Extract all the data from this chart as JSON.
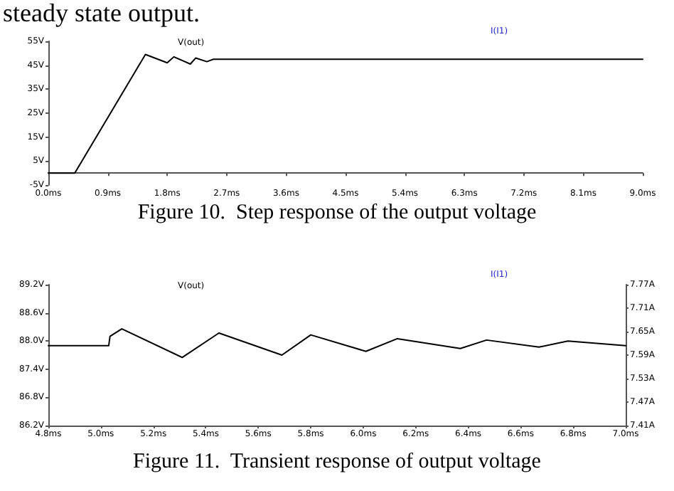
{
  "chart_data": [
    {
      "type": "line",
      "title": "Figure 10.  Step response of the output voltage",
      "annotations": [
        "steady state output."
      ],
      "y2label": "I(I1)",
      "legend": "top",
      "grid": false,
      "marker": "none",
      "line_style": "solid",
      "x": [
        0,
        0.4,
        1.47,
        1.8,
        1.9,
        2.15,
        2.23,
        2.4,
        2.5,
        2.8,
        9.0
      ],
      "series": [
        {
          "name": "V(out)",
          "color": "#000000",
          "values": [
            0,
            0,
            49.5,
            46,
            48.5,
            45.5,
            48,
            46.5,
            47.5,
            47.5,
            47.5
          ]
        }
      ],
      "xlim": [
        0,
        9.0
      ],
      "xticks": [
        {
          "value": 0,
          "label": "0.0ms"
        },
        {
          "value": 0.9,
          "label": "0.9ms"
        },
        {
          "value": 1.8,
          "label": "1.8ms"
        },
        {
          "value": 2.7,
          "label": "2.7ms"
        },
        {
          "value": 3.6,
          "label": "3.6ms"
        },
        {
          "value": 4.5,
          "label": "4.5ms"
        },
        {
          "value": 5.4,
          "label": "5.4ms"
        },
        {
          "value": 6.3,
          "label": "6.3ms"
        },
        {
          "value": 7.2,
          "label": "7.2ms"
        },
        {
          "value": 8.1,
          "label": "8.1ms"
        },
        {
          "value": 9.0,
          "label": "9.0ms"
        }
      ],
      "ylim": [
        -5,
        55
      ],
      "yticks": [
        {
          "value": -5,
          "label": "-5V"
        },
        {
          "value": 5,
          "label": "5V"
        },
        {
          "value": 15,
          "label": "15V"
        },
        {
          "value": 25,
          "label": "25V"
        },
        {
          "value": 35,
          "label": "35V"
        },
        {
          "value": 45,
          "label": "45V"
        },
        {
          "value": 55,
          "label": "55V"
        }
      ]
    },
    {
      "type": "line",
      "title": "Figure 11.  Transient response of output voltage",
      "y2label": "I(I1)",
      "legend": "top",
      "grid": false,
      "marker": "none",
      "line_style": "solid",
      "x": [
        4.8,
        5.03,
        5.035,
        5.08,
        5.31,
        5.45,
        5.69,
        5.8,
        6.01,
        6.13,
        6.37,
        6.47,
        6.67,
        6.78,
        7.0
      ],
      "series": [
        {
          "name": "V(out)",
          "color": "#000000",
          "values": [
            87.9,
            87.9,
            88.1,
            88.26,
            87.65,
            88.17,
            87.7,
            88.13,
            87.78,
            88.05,
            87.84,
            88.02,
            87.87,
            88.0,
            87.9
          ]
        }
      ],
      "xlim": [
        4.8,
        7.0
      ],
      "xticks": [
        {
          "value": 4.8,
          "label": "4.8ms"
        },
        {
          "value": 5.0,
          "label": "5.0ms"
        },
        {
          "value": 5.2,
          "label": "5.2ms"
        },
        {
          "value": 5.4,
          "label": "5.4ms"
        },
        {
          "value": 5.6,
          "label": "5.6ms"
        },
        {
          "value": 5.8,
          "label": "5.8ms"
        },
        {
          "value": 6.0,
          "label": "6.0ms"
        },
        {
          "value": 6.2,
          "label": "6.2ms"
        },
        {
          "value": 6.4,
          "label": "6.4ms"
        },
        {
          "value": 6.6,
          "label": "6.6ms"
        },
        {
          "value": 6.8,
          "label": "6.8ms"
        },
        {
          "value": 7.0,
          "label": "7.0ms"
        }
      ],
      "ylim": [
        86.2,
        89.2
      ],
      "yticks": [
        {
          "value": 86.2,
          "label": "86.2V"
        },
        {
          "value": 86.8,
          "label": "86.8V"
        },
        {
          "value": 87.4,
          "label": "87.4V"
        },
        {
          "value": 88.0,
          "label": "88.0V"
        },
        {
          "value": 88.6,
          "label": "88.6V"
        },
        {
          "value": 89.2,
          "label": "89.2V"
        }
      ],
      "y2lim": [
        7.41,
        7.77
      ],
      "y2ticks": [
        {
          "value": 7.41,
          "label": "7.41A"
        },
        {
          "value": 7.47,
          "label": "7.47A"
        },
        {
          "value": 7.53,
          "label": "7.53A"
        },
        {
          "value": 7.59,
          "label": "7.59A"
        },
        {
          "value": 7.65,
          "label": "7.65A"
        },
        {
          "value": 7.71,
          "label": "7.71A"
        },
        {
          "value": 7.77,
          "label": "7.77A"
        }
      ]
    }
  ]
}
